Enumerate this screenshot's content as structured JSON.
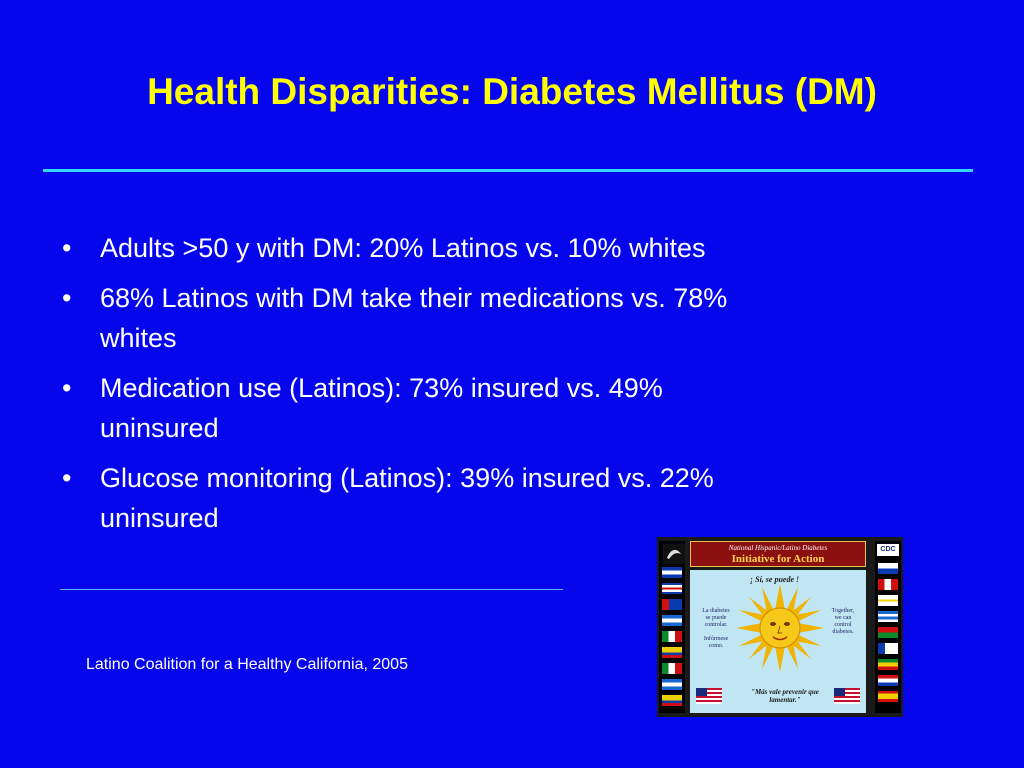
{
  "slide": {
    "title": "Health Disparities: Diabetes Mellitus (DM)",
    "bullet_symbol": "•",
    "bullets": [
      {
        "line1": "Adults  >50 y with DM: 20% Latinos vs. 10% whites",
        "line2": ""
      },
      {
        "line1": "68% Latinos with DM take their medications vs. 78%",
        "line2": "whites"
      },
      {
        "line1": "Medication use (Latinos): 73% insured vs. 49%",
        "line2": "uninsured"
      },
      {
        "line1": "Glucose monitoring (Latinos): 39% insured vs. 22%",
        "line2": "uninsured"
      }
    ],
    "source": "Latino Coalition for a Healthy California, 2005"
  },
  "poster": {
    "banner_top": "National Hispanic/Latino Diabetes",
    "banner_main": "Initiative for Action",
    "slogan": "¡ Sí, se puede !",
    "left_text": [
      "La diabetes",
      "se puede",
      "controlar.",
      "",
      "Infórmese",
      "como."
    ],
    "right_text": [
      "Together,",
      "we can",
      "control",
      "diabetes."
    ],
    "quote": "\"Más vale prevenir que lamentar.\"",
    "logo_text": "CDC"
  },
  "colors": {
    "background": "#0606ec",
    "title": "#ffff00",
    "text": "#ffffff",
    "title_rule": "#31d8f3"
  }
}
